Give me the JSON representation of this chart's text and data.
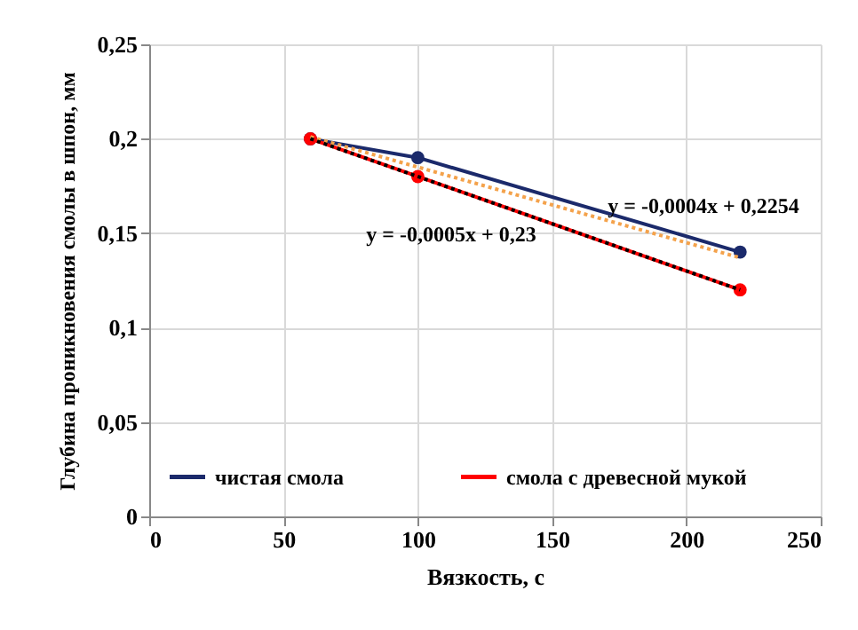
{
  "chart_data": {
    "type": "line",
    "xlabel": "Вязкость, с",
    "ylabel": "Глубина проникновения смолы в шпон, мм",
    "x": [
      60,
      100,
      220
    ],
    "series": [
      {
        "name": "чистая смола",
        "color": "#1b2a6b",
        "values": [
          0.2,
          0.19,
          0.14
        ]
      },
      {
        "name": "смола с древесной мукой",
        "color": "#ff0000",
        "values": [
          0.2,
          0.18,
          0.12
        ]
      },
      {
        "color": "#f4a24b",
        "values": [
          0.201,
          0.185,
          0.137
        ],
        "marker": "none",
        "line_style": "dotted"
      },
      {
        "color": "#000000",
        "values": [
          0.2,
          0.18,
          0.12
        ],
        "marker": "none",
        "line_style": "dotted"
      }
    ],
    "annotations": [
      "y = -0,0004x + 0,2254",
      "y = -0,0005x + 0,23"
    ],
    "xlim": [
      0,
      250
    ],
    "xticks": [
      0,
      50,
      100,
      150,
      200,
      250
    ],
    "ylim": [
      0,
      0.25
    ],
    "yticks": [
      {
        "value": 0,
        "label": "0"
      },
      {
        "value": 0.05,
        "label": "0,05"
      },
      {
        "value": 0.1,
        "label": "0,1"
      },
      {
        "value": 0.15,
        "label": "0,15"
      },
      {
        "value": 0.2,
        "label": "0,2"
      },
      {
        "value": 0.25,
        "label": "0,25"
      }
    ],
    "grid": true,
    "legend": "bottom",
    "marker": "circle",
    "line_style": "solid"
  }
}
